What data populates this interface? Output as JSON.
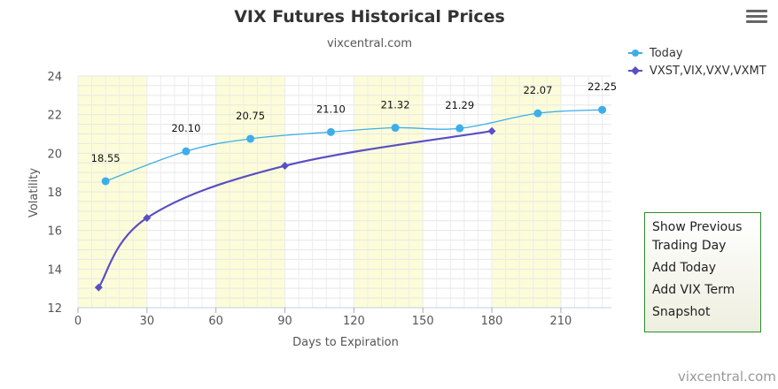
{
  "chart_data": {
    "type": "line",
    "title": "VIX Futures Historical Prices",
    "subtitle": "vixcentral.com",
    "xlabel": "Days to Expiration",
    "ylabel": "Volatility",
    "xlim": [
      0,
      232
    ],
    "ylim": [
      12,
      24
    ],
    "x_ticks": [
      0,
      30,
      60,
      90,
      120,
      150,
      180,
      210
    ],
    "y_ticks": [
      12,
      14,
      16,
      18,
      20,
      22,
      24
    ],
    "grid": true,
    "plot_bands": [
      [
        0,
        30
      ],
      [
        60,
        90
      ],
      [
        120,
        150
      ],
      [
        180,
        210
      ]
    ],
    "legend_position": "top-right",
    "series": [
      {
        "name": "Today",
        "color": "#3daee9",
        "marker": "circle",
        "x": [
          12,
          47,
          75,
          110,
          138,
          166,
          200,
          228
        ],
        "y": [
          18.55,
          20.1,
          20.75,
          21.1,
          21.32,
          21.29,
          22.07,
          22.25
        ],
        "data_labels": [
          "18.55",
          "20.10",
          "20.75",
          "21.10",
          "21.32",
          "21.29",
          "22.07",
          "22.25"
        ]
      },
      {
        "name": "VXST,VIX,VXV,VXMT",
        "color": "#5a4fc2",
        "marker": "diamond",
        "x": [
          9,
          30,
          90,
          180
        ],
        "y": [
          13.05,
          16.65,
          19.35,
          21.15
        ]
      }
    ]
  },
  "menu": {
    "icon": "hamburger-icon",
    "items": [
      "Show Previous Trading Day",
      "Add Today",
      "Add VIX Term",
      "Snapshot"
    ]
  },
  "credits": "vixcentral.com"
}
